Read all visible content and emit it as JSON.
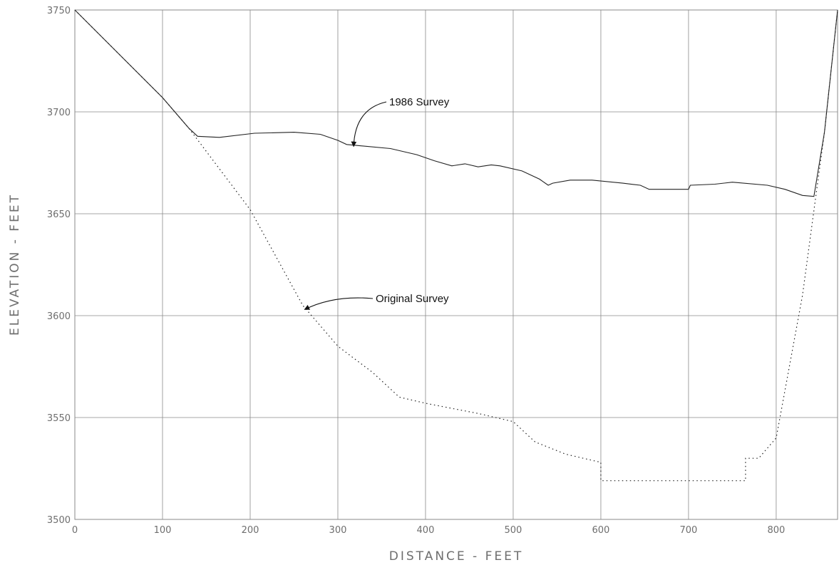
{
  "chart_data": {
    "type": "line",
    "title": "",
    "xlabel": "DISTANCE - FEET",
    "ylabel": "ELEVATION - FEET",
    "xlim": [
      0,
      870
    ],
    "ylim": [
      3500,
      3750
    ],
    "x_ticks": [
      0,
      100,
      200,
      300,
      400,
      500,
      600,
      700,
      800
    ],
    "y_ticks": [
      3500,
      3550,
      3600,
      3650,
      3700,
      3750
    ],
    "grid": true,
    "legend": "none",
    "colors": {
      "line": "#222222",
      "grid": "#8a8a8a",
      "text": "#6e6e6e"
    },
    "series": [
      {
        "name": "1986 Survey",
        "style": "solid",
        "points": [
          [
            0,
            3750
          ],
          [
            100,
            3707
          ],
          [
            130,
            3692
          ],
          [
            140,
            3688
          ],
          [
            165,
            3687.5
          ],
          [
            205,
            3689.5
          ],
          [
            250,
            3690
          ],
          [
            280,
            3689
          ],
          [
            300,
            3686
          ],
          [
            310,
            3684
          ],
          [
            360,
            3682
          ],
          [
            390,
            3679
          ],
          [
            410,
            3676
          ],
          [
            430,
            3673.5
          ],
          [
            445,
            3674.5
          ],
          [
            460,
            3673
          ],
          [
            475,
            3674
          ],
          [
            485,
            3673.5
          ],
          [
            510,
            3671
          ],
          [
            530,
            3667
          ],
          [
            540,
            3664
          ],
          [
            545,
            3665
          ],
          [
            565,
            3666.5
          ],
          [
            590,
            3666.5
          ],
          [
            625,
            3665
          ],
          [
            645,
            3664
          ],
          [
            655,
            3662
          ],
          [
            700,
            3662
          ],
          [
            702,
            3664
          ],
          [
            730,
            3664.5
          ],
          [
            750,
            3665.5
          ],
          [
            790,
            3664
          ],
          [
            810,
            3662
          ],
          [
            830,
            3659
          ],
          [
            843,
            3658.5
          ],
          [
            855,
            3690
          ],
          [
            870,
            3750
          ]
        ]
      },
      {
        "name": "Original Survey",
        "style": "dotted",
        "points": [
          [
            0,
            3750
          ],
          [
            100,
            3707
          ],
          [
            130,
            3692
          ],
          [
            200,
            3652
          ],
          [
            260,
            3605
          ],
          [
            300,
            3585
          ],
          [
            340,
            3572
          ],
          [
            370,
            3560
          ],
          [
            400,
            3557
          ],
          [
            460,
            3552
          ],
          [
            500,
            3548
          ],
          [
            525,
            3538
          ],
          [
            560,
            3532
          ],
          [
            600,
            3528
          ],
          [
            600,
            3519
          ],
          [
            765,
            3519
          ],
          [
            765,
            3530
          ],
          [
            780,
            3530
          ],
          [
            800,
            3540
          ],
          [
            830,
            3610
          ],
          [
            855,
            3690
          ],
          [
            870,
            3750
          ]
        ]
      }
    ],
    "annotations": [
      {
        "text": "1986 Survey",
        "target": [
          318,
          3683
        ]
      },
      {
        "text": "Original Survey",
        "target": [
          262,
          3603
        ]
      }
    ]
  }
}
